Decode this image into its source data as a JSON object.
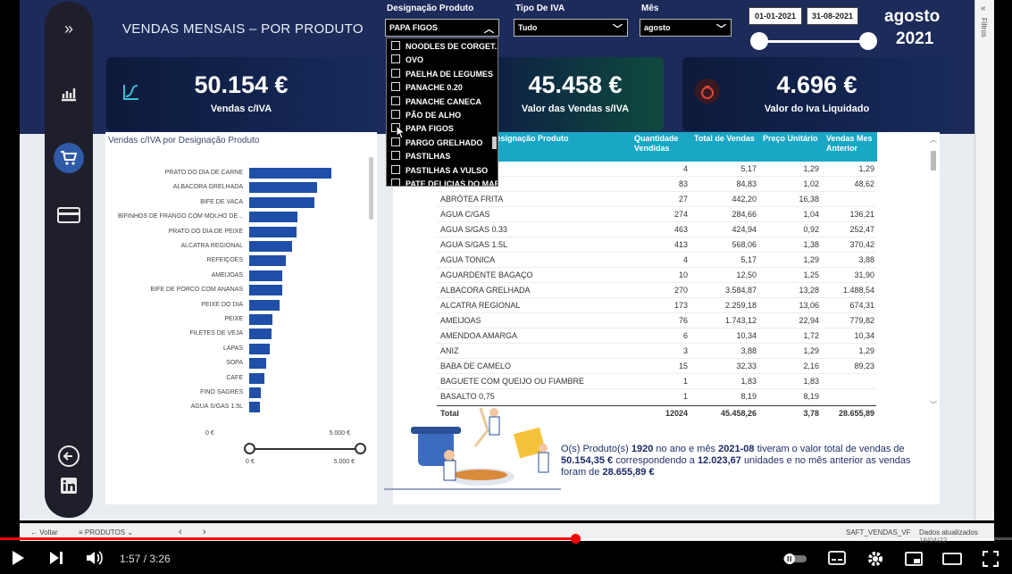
{
  "report": {
    "title": "VENDAS MENSAIS – POR PRODUTO",
    "filters_label": "Filtros"
  },
  "slicers": {
    "produto": {
      "label": "Designação Produto",
      "value": "PAPA FIGOS"
    },
    "iva": {
      "label": "Tipo De IVA",
      "value": "Tudo"
    },
    "mes": {
      "label": "Mês",
      "value": "agosto"
    },
    "date_from": "01-01-2021",
    "date_to": "31-08-2021",
    "month_big": "agosto",
    "year_big": "2021"
  },
  "dropdown_items": [
    "NOODLES DE CORGET...",
    "OVO",
    "PAELHA DE LEGUMES",
    "PANACHE 0.20",
    "PANACHE CANECA",
    "PÃO DE ALHO",
    "PAPA FIGOS",
    "PARGO GRELHADO",
    "PASTILHAS",
    "PASTILHAS A VULSO",
    "PATE DELICIAS DO MAR"
  ],
  "kpis": [
    {
      "value": "50.154 €",
      "label": "Vendas c/IVA"
    },
    {
      "value": "45.458 €",
      "label": "Valor das Vendas s/IVA"
    },
    {
      "value": "4.696 €",
      "label": "Valor do Iva Liquidado"
    }
  ],
  "chart_data": {
    "type": "bar",
    "title": "Vendas c/IVA por Designação Produto",
    "orientation": "horizontal",
    "categories": [
      "PRATO DO DIA DE CARNE",
      "ALBACORA GRELHADA",
      "BIFE DE VACA",
      "BIFINHOS DE FRANGO COM MOLHO DE...",
      "PRATO DO DIA DE PEIXE",
      "ALCATRA REGIONAL",
      "REFEIÇÕES",
      "AMEIJOAS",
      "BIFE DE PORCO COM ANANAS",
      "PEIXE DO DIA",
      "PEIXE",
      "FILETES DE VEJA",
      "LAPAS",
      "SOPA",
      "CAFÉ",
      "FINO SAGRES",
      "AGUA S/GAS 1.5L"
    ],
    "values": [
      4900,
      4050,
      3900,
      2870,
      2800,
      2550,
      2200,
      1990,
      1970,
      1820,
      1380,
      1330,
      1250,
      1020,
      920,
      700,
      640
    ],
    "xlim": [
      0,
      5000
    ],
    "ticks": [
      "0 €",
      "5.000 €"
    ],
    "range_slider": [
      "0 €",
      "5.000 €"
    ]
  },
  "table": {
    "headers": [
      "Designação Produto",
      "Quantidade Vendidas",
      "Total de Vendas",
      "Preço Unitário",
      "Vendas Mes Anterior"
    ],
    "rows": [
      [
        "",
        "4",
        "5,17",
        "1,29",
        "1,29"
      ],
      [
        "",
        "83",
        "84,83",
        "1,02",
        "48,62"
      ],
      [
        "ABRÓTEA FRITA",
        "27",
        "442,20",
        "16,38",
        ""
      ],
      [
        "AGUA C/GAS",
        "274",
        "284,66",
        "1,04",
        "136,21"
      ],
      [
        "AGUA S/GAS 0.33",
        "463",
        "424,94",
        "0,92",
        "252,47"
      ],
      [
        "AGUA S/GAS 1.5L",
        "413",
        "568,06",
        "1,38",
        "370,42"
      ],
      [
        "AGUA TONICA",
        "4",
        "5,17",
        "1,29",
        "3,88"
      ],
      [
        "AGUARDENTE BAGAÇO",
        "10",
        "12,50",
        "1,25",
        "31,90"
      ],
      [
        "ALBACORA GRELHADA",
        "270",
        "3.584,87",
        "13,28",
        "1.488,54"
      ],
      [
        "ALCATRA REGIONAL",
        "173",
        "2.259,18",
        "13,06",
        "674,31"
      ],
      [
        "AMEIJOAS",
        "76",
        "1.743,12",
        "22,94",
        "779,82"
      ],
      [
        "AMENDOA AMARGA",
        "6",
        "10,34",
        "1,72",
        "10,34"
      ],
      [
        "ANIZ",
        "3",
        "3,88",
        "1,29",
        "1,29"
      ],
      [
        "BABA DE CAMELO",
        "15",
        "32,33",
        "2,16",
        "89,23"
      ],
      [
        "BAGUETE COM QUEIJO OU FIAMBRE",
        "1",
        "1,83",
        "1,83",
        ""
      ],
      [
        "BASALTO 0,75",
        "1",
        "8,19",
        "8,19",
        ""
      ]
    ],
    "total": [
      "Total",
      "12024",
      "45.458,26",
      "3,78",
      "28.655,89"
    ]
  },
  "summary": {
    "p1": "O(s) Produto(s)",
    "produtos": "1920",
    "p2": "no ano e mês",
    "ano_mes": "2021-08",
    "p3": "tiveram o valor total de vendas de",
    "total": "50.154,35 €",
    "p4": "correspondendo a",
    "unidades": "12.023,67",
    "p5": "unidades  e no mês anterior as vendas foram de",
    "anterior": "28.655,89 €"
  },
  "tabbar": {
    "back": "Voltar",
    "page": "PRODUTOS",
    "file": "SAFT_VENDAS_VF",
    "updated": "Dados atualizados 16/04/22"
  },
  "player": {
    "time": "1:57 / 3:26",
    "progress": 0.568
  }
}
